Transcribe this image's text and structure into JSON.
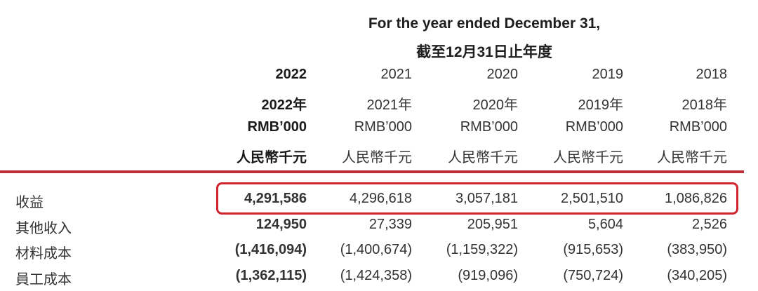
{
  "header": {
    "title_en": "For the year ended December 31,",
    "title_zh": "截至12月31日止年度"
  },
  "columns": [
    {
      "year": "2022",
      "year_zh": "2022年",
      "unit": "RMB’000",
      "unit_zh": "人民幣千元",
      "bold": true
    },
    {
      "year": "2021",
      "year_zh": "2021年",
      "unit": "RMB’000",
      "unit_zh": "人民幣千元",
      "bold": false
    },
    {
      "year": "2020",
      "year_zh": "2020年",
      "unit": "RMB’000",
      "unit_zh": "人民幣千元",
      "bold": false
    },
    {
      "year": "2019",
      "year_zh": "2019年",
      "unit": "RMB’000",
      "unit_zh": "人民幣千元",
      "bold": false
    },
    {
      "year": "2018",
      "year_zh": "2018年",
      "unit": "RMB’000",
      "unit_zh": "人民幣千元",
      "bold": false
    }
  ],
  "rows": [
    {
      "label": "收益",
      "values": [
        "4,291,586",
        "4,296,618",
        "3,057,181",
        "2,501,510",
        "1,086,826"
      ],
      "highlighted": true
    },
    {
      "label": "其他收入",
      "values": [
        "124,950",
        "27,339",
        "205,951",
        "5,604",
        "2,526"
      ]
    },
    {
      "label": "材料成本",
      "values": [
        "(1,416,094)",
        "(1,400,674)",
        "(1,159,322)",
        "(915,653)",
        "(383,950)"
      ]
    },
    {
      "label": "員工成本",
      "values": [
        "(1,362,115)",
        "(1,424,358)",
        "(919,096)",
        "(750,724)",
        "(340,205)"
      ]
    }
  ],
  "colors": {
    "rule": "#c0303a",
    "highlight_border": "#d0242f"
  }
}
